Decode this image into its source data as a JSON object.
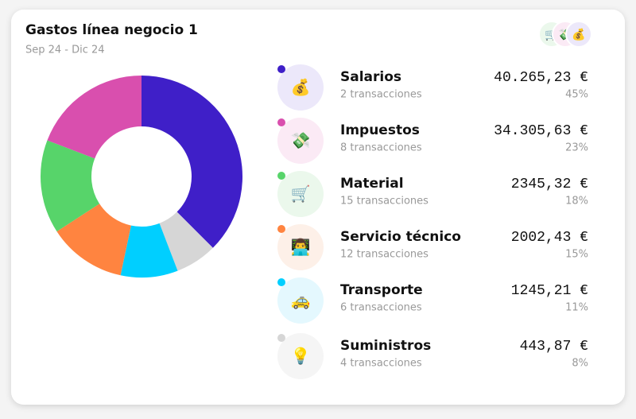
{
  "title": "Gastos línea negocio 1",
  "subtitle": "Sep 24 -  Dic 24",
  "items": [
    {
      "name": "Salarios",
      "transactions": "2 transacciones",
      "amount": "40.265,23 €",
      "share": 45,
      "share_label": "45%",
      "color": "#3f1fc8",
      "icon_bg": "#ece8fa",
      "icon": "💰"
    },
    {
      "name": "Impuestos",
      "transactions": "8 transacciones",
      "amount": "34.305,63 €",
      "share": 23,
      "share_label": "23%",
      "color": "#d94fae",
      "icon_bg": "#fbeaf5",
      "icon": "💸"
    },
    {
      "name": "Material",
      "transactions": "15 transacciones",
      "amount": "2345,32 €",
      "share": 18,
      "share_label": "18%",
      "color": "#57d46a",
      "icon_bg": "#ebf8ec",
      "icon": "🛒"
    },
    {
      "name": "Servicio técnico",
      "transactions": "12 transacciones",
      "amount": "2002,43 €",
      "share": 15,
      "share_label": "15%",
      "color": "#ff8440",
      "icon_bg": "#fdf0e8",
      "icon": "👨‍💻"
    },
    {
      "name": "Transporte",
      "transactions": "6 transacciones",
      "amount": "1245,21 €",
      "share": 11,
      "share_label": "11%",
      "color": "#00cfff",
      "icon_bg": "#e4f8fe",
      "icon": "🚕"
    },
    {
      "name": "Suministros",
      "transactions": "4 transacciones",
      "amount": "443,87 €",
      "share": 8,
      "share_label": "8%",
      "color": "#d6d6d6",
      "icon_bg": "#f5f5f5",
      "icon": "💡"
    }
  ],
  "donut_order": [
    0,
    5,
    4,
    3,
    2,
    1
  ]
}
